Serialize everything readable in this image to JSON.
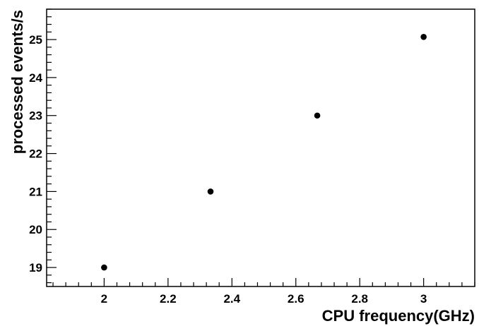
{
  "chart_data": {
    "type": "scatter",
    "title": "",
    "xlabel": "CPU frequency(GHz)",
    "ylabel": "processed events/s",
    "xlim": [
      1.82,
      3.16
    ],
    "ylim": [
      18.5,
      25.8
    ],
    "x_ticks": [
      {
        "value": 2.0,
        "label": "2"
      },
      {
        "value": 2.2,
        "label": "2.2"
      },
      {
        "value": 2.4,
        "label": "2.4"
      },
      {
        "value": 2.6,
        "label": "2.6"
      },
      {
        "value": 2.8,
        "label": "2.8"
      },
      {
        "value": 3.0,
        "label": "3"
      }
    ],
    "y_ticks": [
      {
        "value": 19,
        "label": "19"
      },
      {
        "value": 20,
        "label": "20"
      },
      {
        "value": 21,
        "label": "21"
      },
      {
        "value": 22,
        "label": "22"
      },
      {
        "value": 23,
        "label": "23"
      },
      {
        "value": 24,
        "label": "24"
      },
      {
        "value": 25,
        "label": "25"
      }
    ],
    "grid": false,
    "legend": "none",
    "marker_color": "#000000",
    "series": [
      {
        "points": [
          {
            "x": 2.0,
            "y": 19.0
          },
          {
            "x": 2.333,
            "y": 21.0
          },
          {
            "x": 2.667,
            "y": 23.0
          },
          {
            "x": 3.0,
            "y": 25.07
          }
        ]
      }
    ]
  }
}
